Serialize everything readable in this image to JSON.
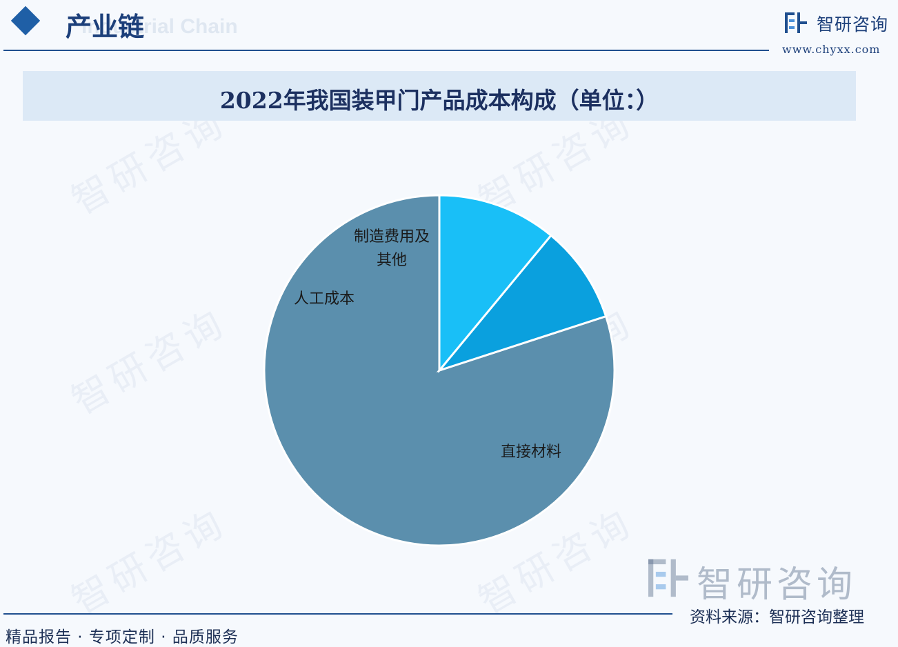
{
  "header": {
    "section_title": "产业链",
    "section_subtitle_en": "Industrial Chain",
    "brand_name": "智研咨询",
    "website": "www.chyxx.com"
  },
  "watermark_text": "智研咨询",
  "chart_data": {
    "type": "pie",
    "title": "2022年我国装甲门产品成本构成（单位：）",
    "slices": [
      {
        "label": "直接材料",
        "value": 80,
        "color": "#5b8fad"
      },
      {
        "label": "人工成本",
        "value": 9,
        "color": "#0aa0de"
      },
      {
        "label": "制造费用及其他",
        "value": 11,
        "color": "#19bff7"
      }
    ],
    "start_angle_deg": 0,
    "direction": "counterclockwise",
    "legend": "none"
  },
  "footer": {
    "slogan": "精品报告 · 专项定制 · 品质服务",
    "source": "资料来源：智研咨询整理",
    "brand_name": "智研咨询"
  }
}
